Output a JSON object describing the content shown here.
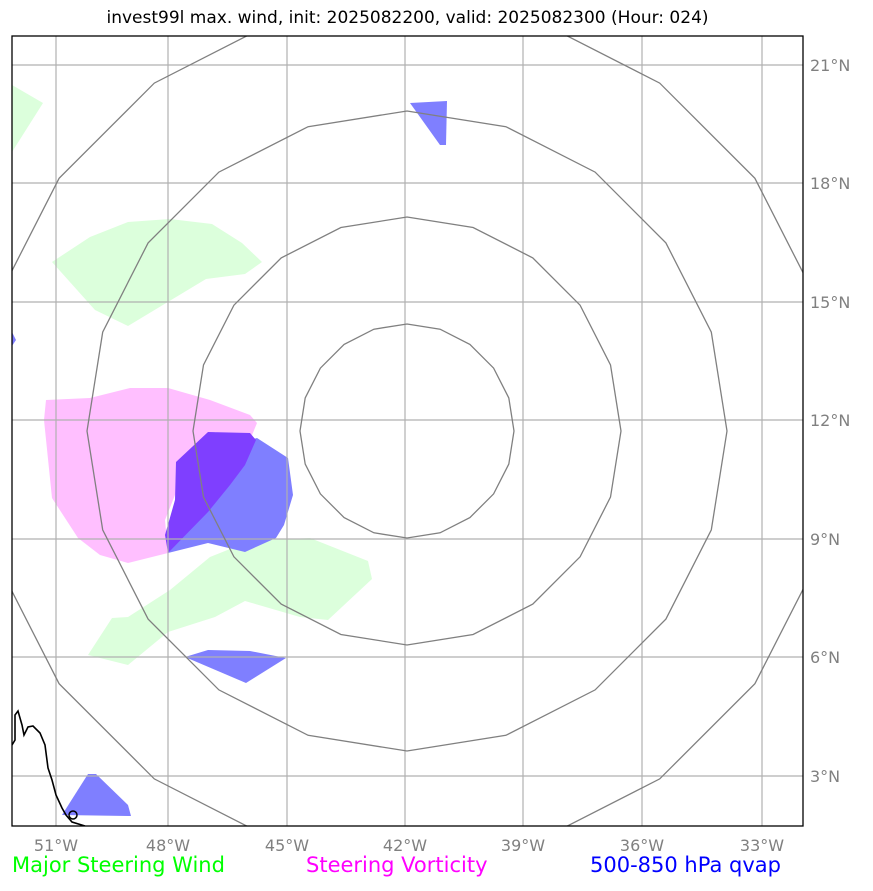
{
  "title": "invest99l max. wind, init: 2025082200, valid: 2025082300 (Hour: 024)",
  "lon_labels": [
    "51°W",
    "48°W",
    "45°W",
    "42°W",
    "39°W",
    "36°W",
    "33°W"
  ],
  "lat_labels": [
    "21°N",
    "18°N",
    "15°N",
    "12°N",
    "9°N",
    "6°N",
    "3°N"
  ],
  "legend": [
    {
      "label": "Major Steering Wind",
      "color": "#00ff00"
    },
    {
      "label": "Steering Vorticity",
      "color": "#ff00ff"
    },
    {
      "label": "500-850 hPa qvap",
      "color": "#0000ff"
    }
  ],
  "colors": {
    "wind_fill": "#dcffdc",
    "vort_fill": "#ffbfff",
    "qvap_fill": "#7f7fff",
    "overlap_fill": "#7f3fff",
    "grid": "#b0b0b0",
    "rings": "#808080"
  }
}
